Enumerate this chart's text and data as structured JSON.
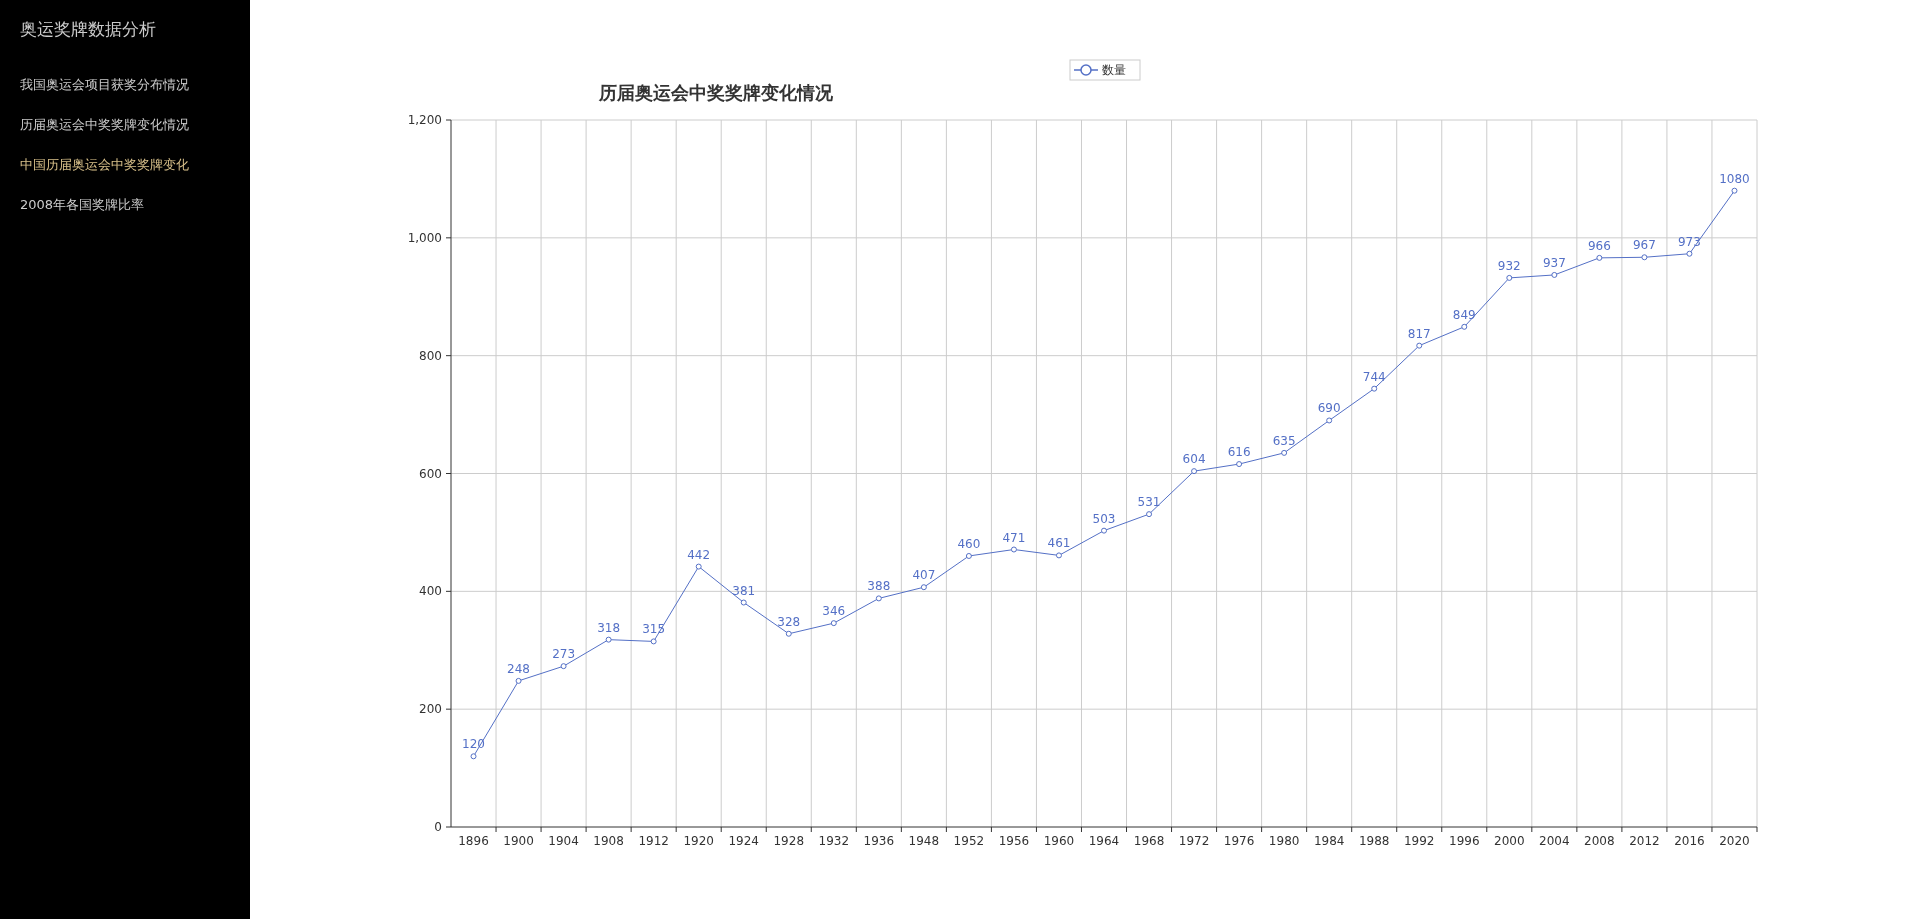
{
  "chart_data": {
    "type": "line",
    "title": "历届奥运会中奖奖牌变化情况",
    "annotations": [
      "奥运奖牌数据分析",
      "我国奥运会项目获奖分布情况",
      "历届奥运会中奖奖牌变化情况",
      "中国历届奥运会中奖奖牌变化",
      "2008年各国奖牌比率"
    ],
    "categories": [
      "1896",
      "1900",
      "1904",
      "1908",
      "1912",
      "1920",
      "1924",
      "1928",
      "1932",
      "1936",
      "1948",
      "1952",
      "1956",
      "1960",
      "1964",
      "1968",
      "1972",
      "1976",
      "1980",
      "1984",
      "1988",
      "1992",
      "1996",
      "2000",
      "2004",
      "2008",
      "2012",
      "2016",
      "2020"
    ],
    "series": [
      {
        "name": "数量",
        "color": "#5470c6",
        "values": [
          120,
          248,
          273,
          318,
          315,
          442,
          381,
          328,
          346,
          388,
          407,
          460,
          471,
          461,
          503,
          531,
          604,
          616,
          635,
          690,
          744,
          817,
          849,
          932,
          937,
          966,
          967,
          973,
          1080
        ]
      }
    ],
    "ylim": [
      0,
      1200
    ],
    "yticks": [
      0,
      200,
      400,
      600,
      800,
      {
        "value": 1000,
        "label": "1,000"
      },
      {
        "value": 1200,
        "label": "1,200"
      }
    ],
    "grid": true,
    "legend": "top",
    "marker": "circle",
    "data_labels": true
  }
}
